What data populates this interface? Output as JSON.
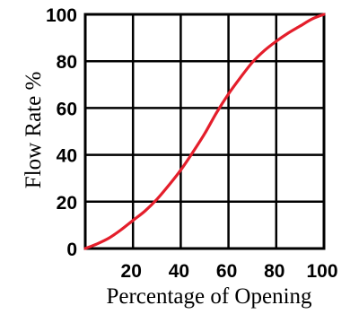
{
  "chart_data": {
    "type": "line",
    "title": "",
    "xlabel": "Percentage of Opening",
    "ylabel": "Flow Rate %",
    "xlim": [
      0,
      100
    ],
    "ylim": [
      0,
      100
    ],
    "x_ticks": [
      20,
      40,
      60,
      80,
      100
    ],
    "y_ticks": [
      0,
      20,
      40,
      60,
      80,
      100
    ],
    "grid": true,
    "series": [
      {
        "color": "#e41e2b",
        "x": [
          0,
          5,
          10,
          15,
          20,
          25,
          30,
          35,
          40,
          45,
          50,
          55,
          60,
          65,
          70,
          75,
          80,
          85,
          90,
          95,
          100
        ],
        "y": [
          0,
          2,
          4.5,
          8,
          12,
          16,
          21,
          27,
          33.5,
          41,
          49,
          58,
          66,
          73,
          79.5,
          84.5,
          88.5,
          92,
          95,
          98,
          100
        ]
      }
    ]
  }
}
